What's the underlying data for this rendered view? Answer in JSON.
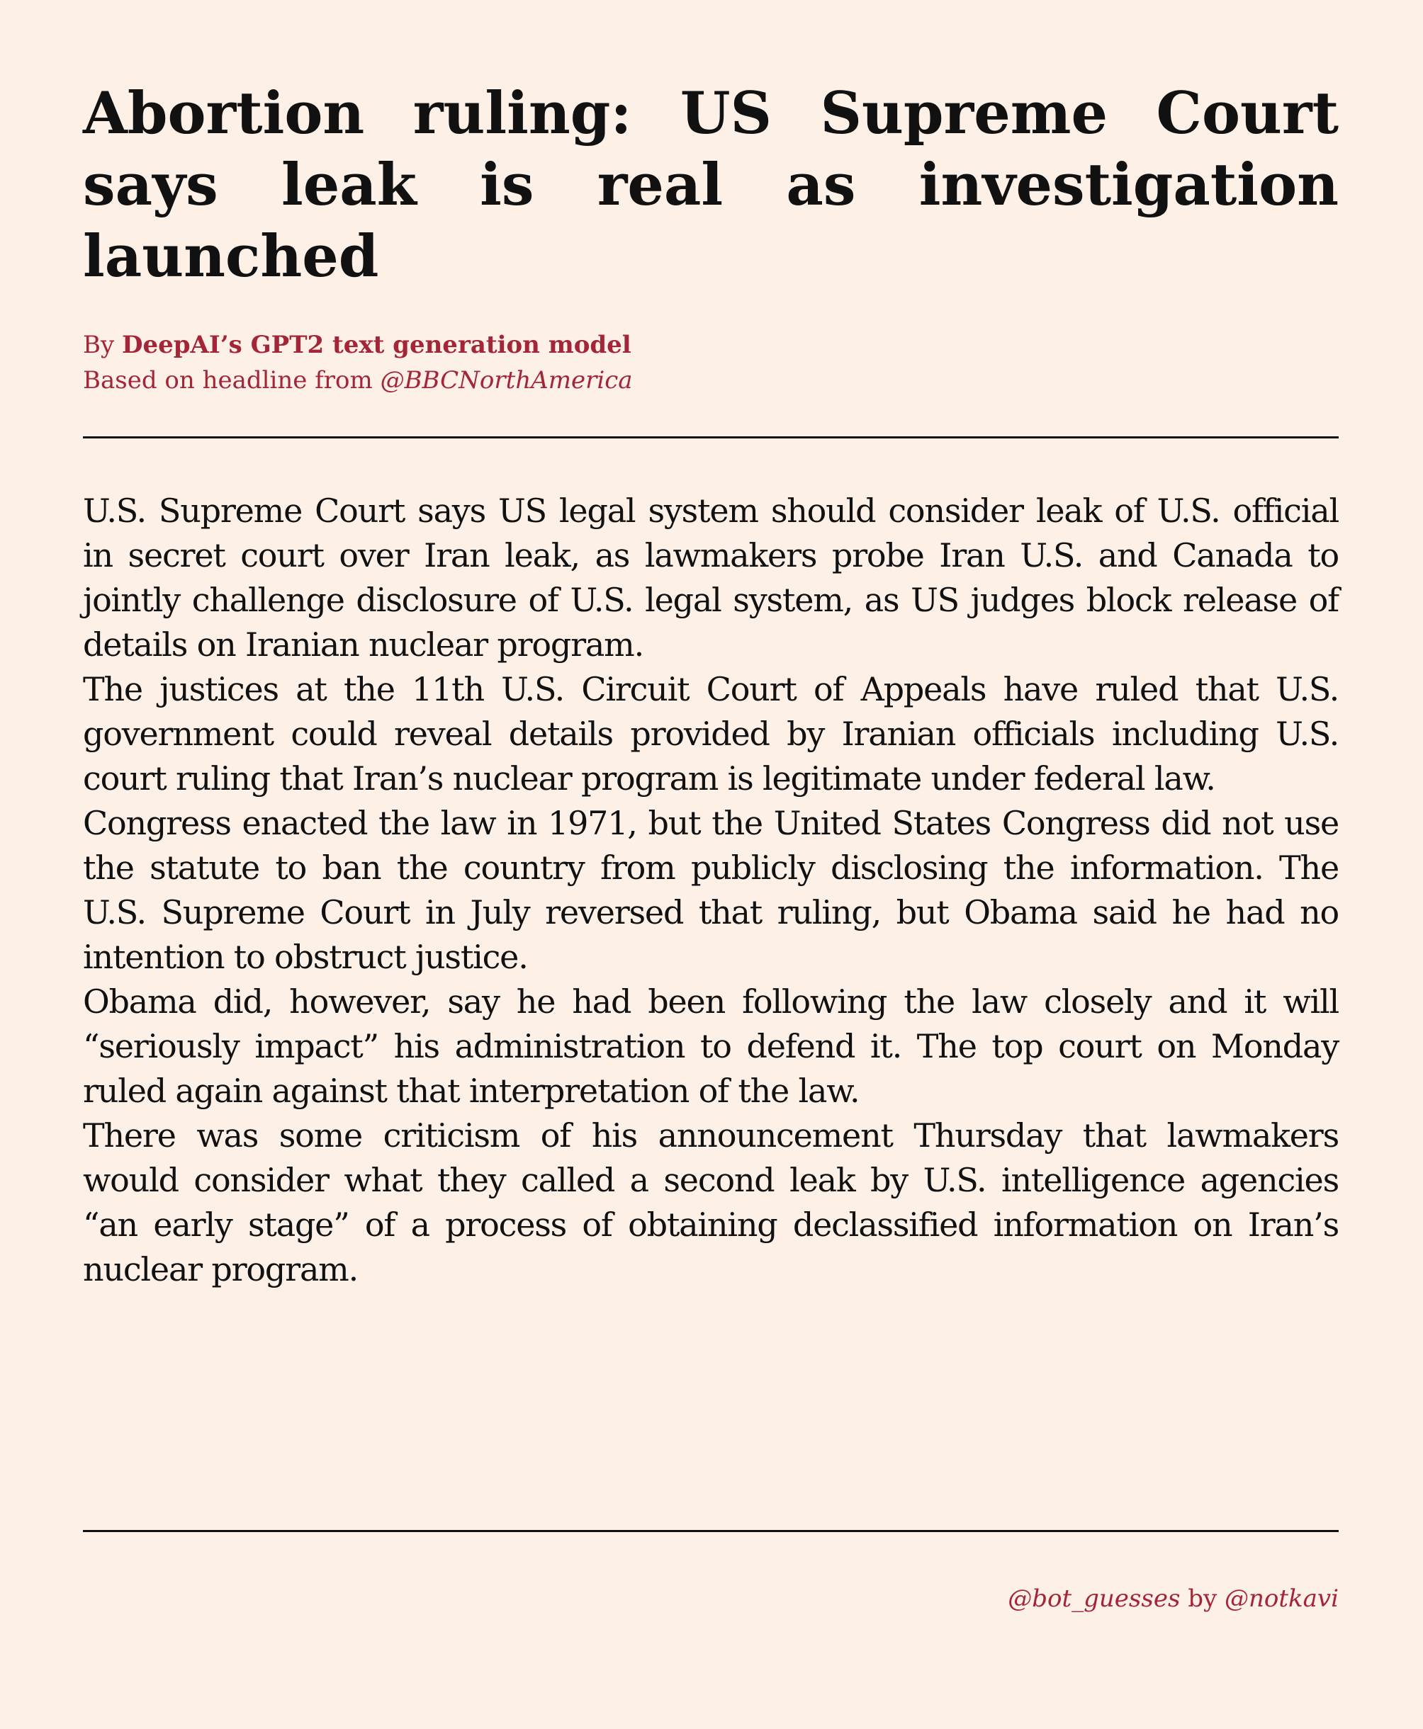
{
  "headline": "Abortion ruling: US Supreme Court says leak is real as investigation launched",
  "byline": {
    "prefix": "By ",
    "author": "DeepAI’s GPT2 text generation model",
    "source_prefix": "Based on headline from ",
    "source_handle": "@BBCNorthAmerica"
  },
  "article": {
    "paragraphs": [
      "U.S. Supreme Court says US legal system should consider leak of U.S. official in secret court over Iran leak, as lawmakers probe Iran U.S. and Canada to jointly challenge disclosure of U.S. legal system, as US judges block release of details on Iranian nuclear program.",
      "The justices at the 11th U.S. Circuit Court of Appeals have ruled that U.S. government could reveal details provided by Iranian officials including U.S. court ruling that Iran’s nuclear program is legitimate under federal law.",
      "Congress enacted the law in 1971, but the United States Congress did not use the statute to ban the country from publicly disclosing the information. The U.S. Supreme Court in July reversed that ruling, but Obama said he had no intention to obstruct justice.",
      "Obama did, however, say he had been following the law closely and it will “seriously impact” his administration to defend it. The top court on Monday ruled again against that interpretation of the law.",
      "There was some criticism of his announcement Thursday that lawmakers would consider what they called a second leak by U.S. intelligence agencies “an early stage” of a process of obtaining declassified information on Iran’s nuclear program."
    ]
  },
  "credit": {
    "bot_handle": "@bot_guesses",
    "by": " by ",
    "author_handle": "@notkavi"
  },
  "colors": {
    "background": "#fdf0e7",
    "accent": "#a32638",
    "text": "#111111"
  }
}
